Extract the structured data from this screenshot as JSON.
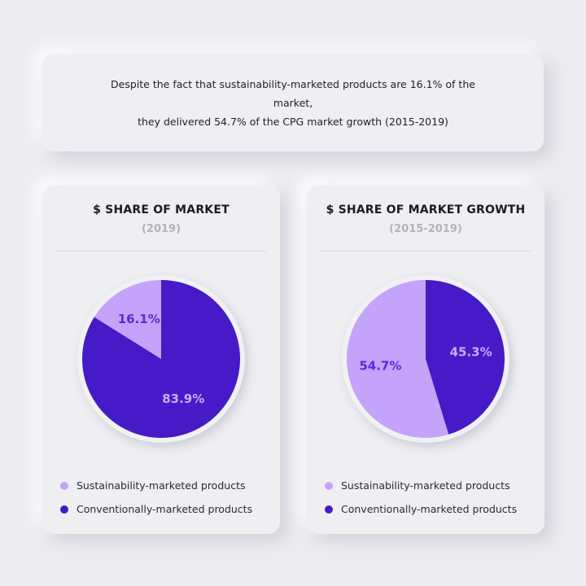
{
  "banner": {
    "line1": "Despite the fact that sustainability-marketed products are 16.1% of the market,",
    "line2": "they delivered 54.7% of the CPG market growth (2015-2019)"
  },
  "colors": {
    "sustainability": "#c4a3fa",
    "conventional": "#461ac6",
    "label_on_light": "#5a2ad6",
    "label_on_dark": "#c7adfb"
  },
  "chart_data": [
    {
      "type": "pie",
      "title": "$ SHARE OF MARKET",
      "subtitle": "(2019)",
      "slices": [
        {
          "label": "Sustainability-marketed products",
          "value": 16.1,
          "display": "16.1%"
        },
        {
          "label": "Conventionally-marketed products",
          "value": 83.9,
          "display": "83.9%"
        }
      ],
      "legend": [
        "Sustainability-marketed products",
        "Conventionally-marketed products"
      ],
      "legend_position": "bottom-left"
    },
    {
      "type": "pie",
      "title": "$ SHARE OF MARKET GROWTH",
      "subtitle": "(2015-2019)",
      "slices": [
        {
          "label": "Sustainability-marketed products",
          "value": 54.7,
          "display": "54.7%"
        },
        {
          "label": "Conventionally-marketed products",
          "value": 45.3,
          "display": "45.3%"
        }
      ],
      "legend": [
        "Sustainability-marketed products",
        "Conventionally-marketed products"
      ],
      "legend_position": "bottom-left"
    }
  ]
}
